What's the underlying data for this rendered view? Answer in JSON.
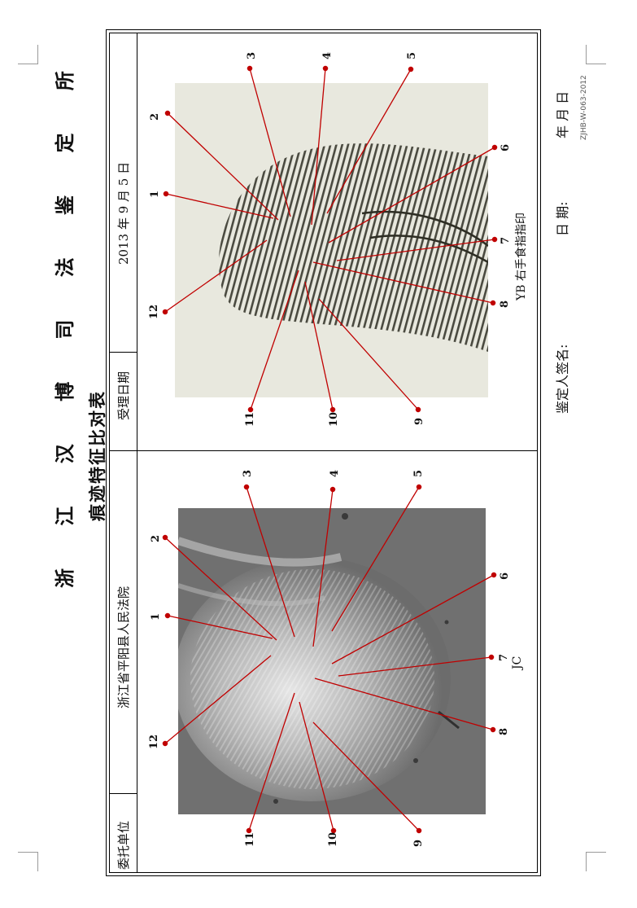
{
  "document": {
    "org_title": "浙 江 汉 博 司 法 鉴 定 所",
    "subtitle": "痕迹特征比对表",
    "form_code": "ZJHB-W-063-2012",
    "header": {
      "client_label": "委托单位",
      "client_value": "浙江省平阳县人民法院",
      "date_label": "受理日期",
      "date_value": "2013 年 9 月 5 日"
    },
    "captions": {
      "questioned": "JC",
      "reference": "YB 右手食指指印"
    },
    "footer": {
      "appraiser_label": "鉴定人签名:",
      "date_label": "日  期:",
      "date_blank": "年    月    日"
    },
    "marker_labels": [
      "1",
      "2",
      "3",
      "4",
      "5",
      "6",
      "7",
      "8",
      "9",
      "10",
      "11",
      "12"
    ],
    "return_mark": "↵"
  },
  "colors": {
    "annotation_red": "#c00000",
    "border": "#000000"
  }
}
